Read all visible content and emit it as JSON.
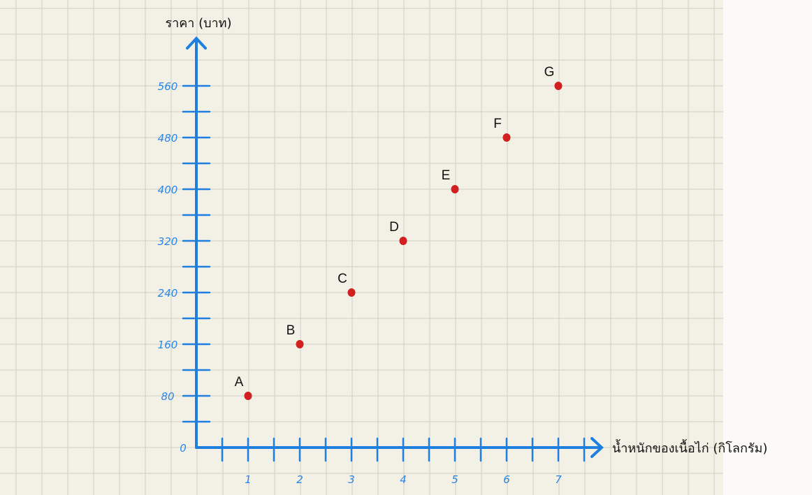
{
  "colors": {
    "background": "#f3f1e6",
    "grid": "#cfcfc5",
    "axis": "#1f7fe0",
    "tick_label": "#2a86e6",
    "point": "#d21f1f"
  },
  "chart_data": {
    "type": "scatter",
    "title": "",
    "xlabel": "น้ำหนักของเนื้อไก่ (กิโลกรัม)",
    "ylabel": "ราคา (บาท)",
    "x_ticks": [
      "1",
      "2",
      "3",
      "4",
      "5",
      "6",
      "7"
    ],
    "y_ticks": [
      "80",
      "160",
      "240",
      "320",
      "400",
      "480",
      "560"
    ],
    "origin_label": "0",
    "xlim": [
      0,
      7.5
    ],
    "ylim": [
      0,
      640
    ],
    "grid": true,
    "points": [
      {
        "label": "A",
        "x": 1,
        "y": 80
      },
      {
        "label": "B",
        "x": 2,
        "y": 160
      },
      {
        "label": "C",
        "x": 3,
        "y": 240
      },
      {
        "label": "D",
        "x": 4,
        "y": 320
      },
      {
        "label": "E",
        "x": 5,
        "y": 400
      },
      {
        "label": "F",
        "x": 6,
        "y": 480
      },
      {
        "label": "G",
        "x": 7,
        "y": 560
      }
    ]
  }
}
